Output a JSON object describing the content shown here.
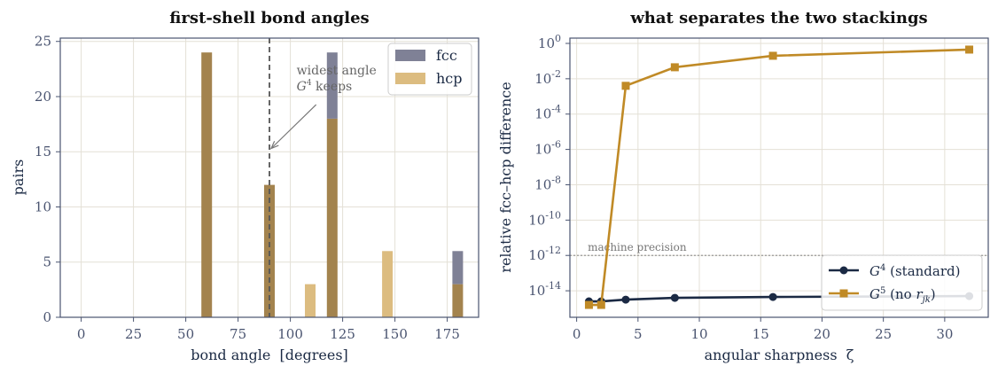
{
  "chart_data": [
    {
      "type": "bar",
      "title": "first-shell bond angles",
      "xlabel": "bond angle  [degrees]",
      "ylabel": "pairs",
      "xlim": [
        -10,
        190
      ],
      "ylim": [
        0,
        25.3
      ],
      "xticks": [
        0,
        25,
        50,
        75,
        100,
        125,
        150,
        175
      ],
      "yticks": [
        0,
        5,
        10,
        15,
        20,
        25
      ],
      "grid": true,
      "legend": "top-right",
      "series": [
        {
          "name": "fcc",
          "color": "#7f8196",
          "x": [
            60,
            90,
            120,
            180
          ],
          "values": [
            24,
            12,
            24,
            6
          ]
        },
        {
          "name": "hcp",
          "color": "#dcbc80",
          "x": [
            60,
            90,
            109.5,
            120,
            146.4,
            180
          ],
          "values": [
            24,
            12,
            3,
            18,
            6,
            3
          ]
        }
      ],
      "overlap_color": "#a3834e",
      "marker_line": {
        "x": 90
      },
      "annotation": {
        "line1": "widest angle",
        "line2_sym": "G",
        "line2_sup": "4",
        "line2_rest": " keeps",
        "arrow_to": {
          "x": 90,
          "y": 15.3
        },
        "text_at": {
          "x": 103,
          "y": 22
        }
      }
    },
    {
      "type": "line",
      "title": "what separates the two stackings",
      "xlabel": "angular sharpness  ζ",
      "ylabel": "relative fcc–hcp difference",
      "yscale": "log",
      "xlim": [
        -0.55,
        33.55
      ],
      "ylim_log10": [
        -15.5,
        0.3
      ],
      "xticks": [
        0,
        5,
        10,
        15,
        20,
        25,
        30
      ],
      "yticks_exp": [
        0,
        -2,
        -4,
        -6,
        -8,
        -10,
        -12,
        -14
      ],
      "grid": true,
      "legend": "bottom-right",
      "x": [
        1,
        2,
        4,
        8,
        16,
        32
      ],
      "series": [
        {
          "name": "G4 (standard)",
          "sym": "G",
          "sup": "4",
          "rest": " (standard)",
          "marker": "circle",
          "color": "#1b2a44",
          "log10_values": [
            -14.6,
            -14.6,
            -14.5,
            -14.4,
            -14.35,
            -14.3
          ]
        },
        {
          "name": "G5 (no r_jk)",
          "sym": "G",
          "sup": "5",
          "rest_pre": " (no ",
          "rest_it": "r",
          "rest_sub": "jk",
          "rest_post": ")",
          "marker": "square",
          "color": "#c08a26",
          "log10_values": [
            -14.8,
            -14.8,
            -2.4,
            -1.35,
            -0.7,
            -0.35
          ]
        }
      ],
      "reference_line": {
        "log10_value": -12,
        "label": "machine precision"
      }
    }
  ]
}
